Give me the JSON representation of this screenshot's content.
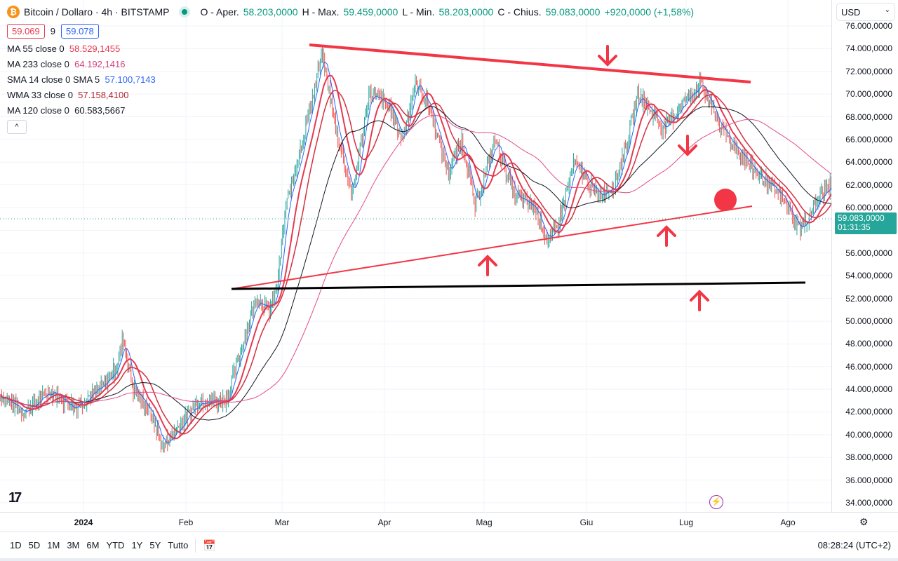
{
  "header": {
    "symbol": "Bitcoin / Dollaro · 4h · BITSTAMP",
    "o_label": "O - Aper.",
    "o": "58.203,0000",
    "h_label": "H - Max.",
    "h": "59.459,0000",
    "l_label": "L - Min.",
    "l": "58.203,0000",
    "c_label": "C - Chius.",
    "c": "59.083,0000",
    "chg": "+920,0000 (+1,58%)",
    "bid": "59.069",
    "spread": "9",
    "ask": "59.078"
  },
  "indicators": [
    {
      "name": "MA 55 close 0",
      "value": "58.529,1455",
      "color": "#e53950"
    },
    {
      "name": "MA 233 close 0",
      "value": "64.192,1416",
      "color": "#d63e7a"
    },
    {
      "name": "SMA 14 close 0 SMA 5",
      "value": "57.100,7143",
      "color": "#2962ff"
    },
    {
      "name": "WMA 33 close 0",
      "value": "57.158,4100",
      "color": "#b22833"
    },
    {
      "name": "MA 120 close 0",
      "value": "60.583,5667",
      "color": "#131722"
    }
  ],
  "collapse_icon": "^",
  "currency": "USD",
  "price_axis": [
    "76.000,0000",
    "74.000,0000",
    "72.000,0000",
    "70.000,0000",
    "68.000,0000",
    "66.000,0000",
    "64.000,0000",
    "62.000,0000",
    "60.000,0000",
    "56.000,0000",
    "54.000,0000",
    "52.000,0000",
    "50.000,0000",
    "48.000,0000",
    "46.000,0000",
    "44.000,0000",
    "42.000,0000",
    "40.000,0000",
    "38.000,0000",
    "36.000,0000",
    "34.000,0000"
  ],
  "last_price": "59.083,0000",
  "countdown": "01:31:35",
  "time_axis": [
    "2024",
    "Feb",
    "Mar",
    "Apr",
    "Mag",
    "Giu",
    "Lug",
    "Ago"
  ],
  "ranges": [
    "1D",
    "5D",
    "1M",
    "3M",
    "6M",
    "YTD",
    "1Y",
    "5Y",
    "Tutto"
  ],
  "clock": "08:28:24 (UTC+2)",
  "logo": "TV",
  "colors": {
    "up": "#26a69a",
    "down": "#ef5350",
    "drawing": "#f23645"
  },
  "chart_data": {
    "type": "candlestick",
    "path": [
      [
        -25,
        43.5
      ],
      [
        -18,
        42
      ],
      [
        -10,
        43.8
      ],
      [
        -3,
        42.5
      ],
      [
        5,
        44
      ],
      [
        10,
        46
      ],
      [
        12,
        48.5
      ],
      [
        15,
        44
      ],
      [
        20,
        42
      ],
      [
        24,
        39
      ],
      [
        28,
        40.5
      ],
      [
        35,
        43
      ],
      [
        43,
        43
      ],
      [
        48,
        48
      ],
      [
        52,
        52
      ],
      [
        56,
        51
      ],
      [
        58,
        52.5
      ],
      [
        61,
        60
      ],
      [
        66,
        66
      ],
      [
        70,
        71
      ],
      [
        72,
        73.5
      ],
      [
        76,
        67
      ],
      [
        81,
        61
      ],
      [
        86,
        70
      ],
      [
        92,
        69
      ],
      [
        96,
        66
      ],
      [
        100,
        71
      ],
      [
        104,
        69
      ],
      [
        110,
        63
      ],
      [
        114,
        66
      ],
      [
        118,
        60
      ],
      [
        124,
        66
      ],
      [
        130,
        61
      ],
      [
        136,
        60
      ],
      [
        140,
        57
      ],
      [
        143,
        58.5
      ],
      [
        148,
        64
      ],
      [
        155,
        61
      ],
      [
        160,
        62
      ],
      [
        164,
        66
      ],
      [
        167,
        70
      ],
      [
        175,
        67
      ],
      [
        180,
        69
      ],
      [
        186,
        71
      ],
      [
        192,
        67
      ],
      [
        200,
        64
      ],
      [
        210,
        61
      ],
      [
        216,
        58
      ],
      [
        222,
        61
      ],
      [
        228,
        63
      ],
      [
        232,
        58
      ],
      [
        234,
        54
      ],
      [
        238,
        56
      ],
      [
        242,
        57
      ],
      [
        244,
        58.5
      ],
      [
        246,
        59.1
      ]
    ]
  }
}
